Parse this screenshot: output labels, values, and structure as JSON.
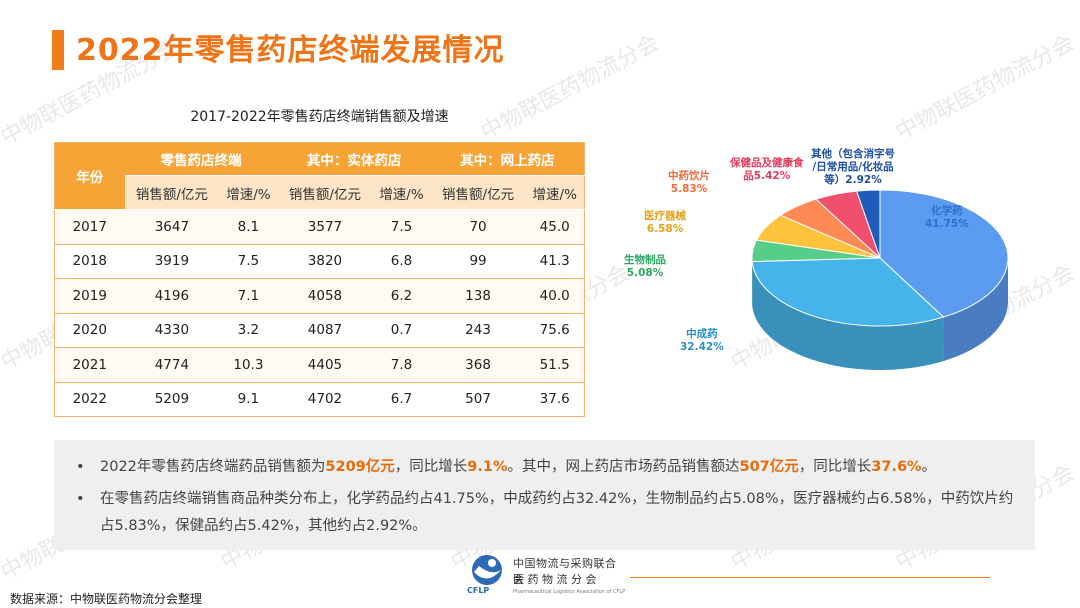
{
  "title": "2022年零售药店终端发展情况",
  "table": {
    "caption": "2017-2022年零售药店终端销售额及增速",
    "year_header": "年份",
    "groups": [
      "零售药店终端",
      "其中：实体药店",
      "其中：网上药店"
    ],
    "subheaders": [
      "销售额/亿元",
      "增速/%",
      "销售额/亿元",
      "增速/%",
      "销售额/亿元",
      "增速/%"
    ],
    "rows": [
      [
        "2017",
        "3647",
        "8.1",
        "3577",
        "7.5",
        "70",
        "45.0"
      ],
      [
        "2018",
        "3919",
        "7.5",
        "3820",
        "6.8",
        "99",
        "41.3"
      ],
      [
        "2019",
        "4196",
        "7.1",
        "4058",
        "6.2",
        "138",
        "40.0"
      ],
      [
        "2020",
        "4330",
        "3.2",
        "4087",
        "0.7",
        "243",
        "75.6"
      ],
      [
        "2021",
        "4774",
        "10.3",
        "4405",
        "7.8",
        "368",
        "51.5"
      ],
      [
        "2022",
        "5209",
        "9.1",
        "4702",
        "6.7",
        "507",
        "37.6"
      ]
    ]
  },
  "chart_data": {
    "type": "pie",
    "slices": [
      {
        "name": "化学药",
        "value": 41.75,
        "label": "41.75%",
        "color": "#5b9bf0"
      },
      {
        "name": "中成药",
        "value": 32.42,
        "label": "32.42%",
        "color": "#46b4ea"
      },
      {
        "name": "生物制品",
        "value": 5.08,
        "label": "5.08%",
        "color": "#57cd8a"
      },
      {
        "name": "医疗器械",
        "value": 6.58,
        "label": "6.58%",
        "color": "#ffc23d"
      },
      {
        "name": "中药饮片",
        "value": 5.83,
        "label": "5.83%",
        "color": "#ff8a55"
      },
      {
        "name": "保健品及健康食品",
        "value": 5.42,
        "label": "5.42%",
        "color": "#f0506e"
      },
      {
        "name": "其他（包含消字号/日常用品/化妆品等）",
        "value": 2.92,
        "label": "2.92%",
        "color": "#1f5bb8"
      }
    ]
  },
  "pie_labels": {
    "chem_name": "化学药",
    "chem_pct": "41.75%",
    "tcm_name": "中成药",
    "tcm_pct": "32.42%",
    "bio_name": "生物制品",
    "bio_pct": "5.08%",
    "device_name": "医疗器械",
    "device_pct": "6.58%",
    "herb_name": "中药饮片",
    "herb_pct": "5.83%",
    "health_name_1": "保健品及健康食",
    "health_name_2": "品5.42%",
    "other_1": "其他（包含消字号",
    "other_2": "/日常用品/化妆品",
    "other_3": "等）2.92%"
  },
  "summary": {
    "bullet_char": "•",
    "b1": {
      "t1": "2022年零售药店终端药品销售额为",
      "h1": "5209亿元",
      "t2": "，同比增长",
      "h2": "9.1%",
      "t3": "。其中，网上药店市场药品销售额达",
      "h3": "507亿元",
      "t4": "，同比增长",
      "h4": "37.6%",
      "t5": "。"
    },
    "b2": "在零售药店终端销售商品种类分布上，化学药品约占41.75%，中成药约占32.42%，生物制品约占5.08%，医疗器械约占6.58%，中药饮片约占5.83%，保健品约占5.42%，其他约占2.92%。"
  },
  "watermark": "中物联医药物流分会",
  "logo": {
    "line1": "中国物流与采购联合会",
    "line2": "医 药 物 流 分 会",
    "abbr": "CFLP",
    "sub": "Pharmaceutical Logistics Association of CFLP"
  },
  "source": "数据来源：中物联医药物流分会整理",
  "colors": {
    "accent": "#f07d1a",
    "header": "#f7a436",
    "subheader": "#fde6c8"
  }
}
